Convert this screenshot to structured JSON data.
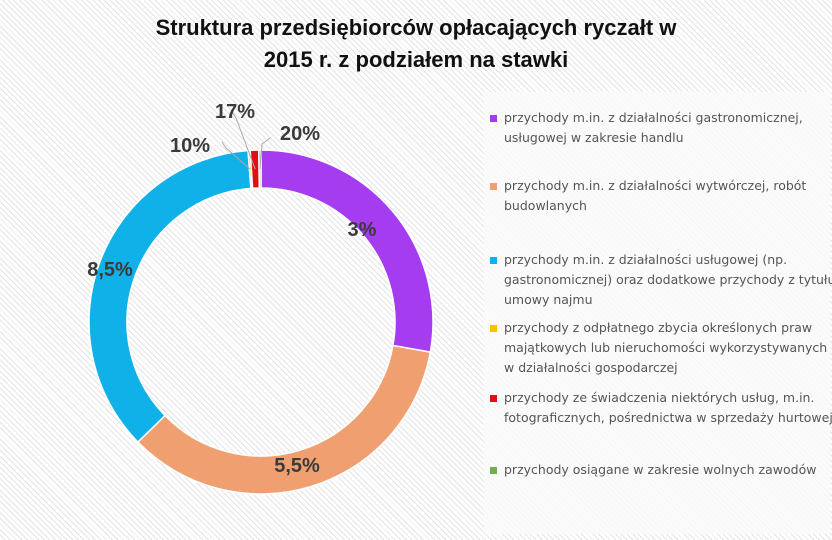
{
  "chart_data": {
    "type": "pie",
    "variant": "donut",
    "title_lines": [
      "Struktura  przedsiębiorców  opłacających  ryczałt  w",
      "2015 r. z podziałem na stawki"
    ],
    "categories": [
      "przychody m.in. z działalności gastronomicznej, usługowej w zakresie handlu",
      "przychody m.in. z działalności wytwórczej, robót budowlanych",
      "przychody m.in. z działalności usługowej (np. gastronomicznej) oraz dodatkowe przychody z tytułu umowy najmu",
      "przychody z odpłatnego zbycia określonych praw majątkowych lub nieruchomości wykorzystywanych w działalności gospodarczej",
      "przychody ze świadczenia niektórych usług, m.in. fotograficznych, pośrednictwa w sprzedaży hurtowej",
      "przychody osiągane w zakresie wolnych zawodów"
    ],
    "values": [
      27.8,
      34.9,
      36.1,
      0.2,
      0.8,
      0.2
    ],
    "data_labels": [
      "3%",
      "5,5%",
      "8,5%",
      "10%",
      "17%",
      "20%"
    ],
    "colors": [
      "#a63cf0",
      "#f0a070",
      "#10b0e8",
      "#f5c400",
      "#e01010",
      "#70b050"
    ],
    "legend_position": "right"
  }
}
